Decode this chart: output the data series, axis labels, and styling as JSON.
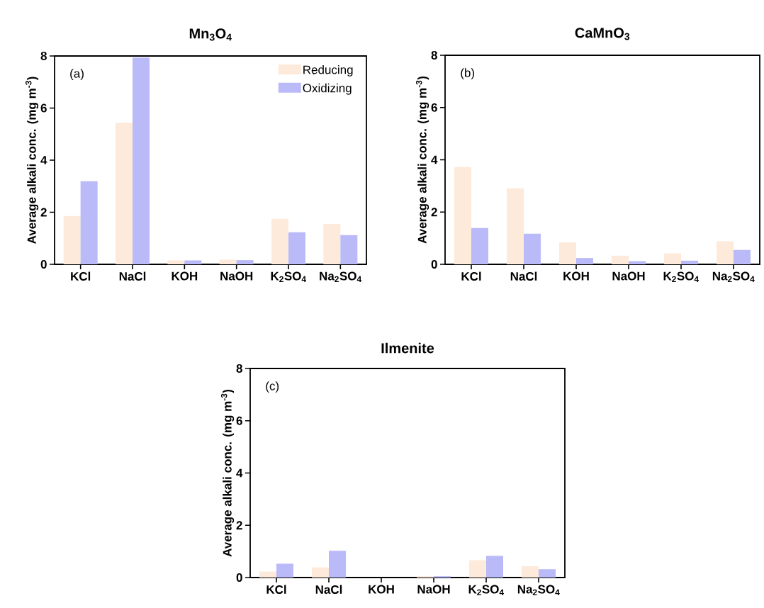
{
  "chart_data": [
    {
      "type": "bar",
      "title": "Mn$_{3}$O$_{4}$",
      "ylabel": "Average alkali conc. (mg m$^{-3}$)",
      "categories": [
        "KCl",
        "NaCl",
        "KOH",
        "NaOH",
        "K$_{2}$SO$_{4}$",
        "Na$_{2}$SO$_{4}$"
      ],
      "ylim": [
        0,
        8
      ],
      "yticks": [
        0,
        2,
        4,
        6,
        8
      ],
      "legend": "top right",
      "annotations": [
        "(a)"
      ],
      "series": [
        {
          "name": "Reducing",
          "color": "#fdeadb",
          "values": [
            1.86,
            5.44,
            0.15,
            0.18,
            1.75,
            1.55
          ]
        },
        {
          "name": "Oxidizing",
          "color": "#babaf8",
          "values": [
            3.19,
            7.94,
            0.15,
            0.16,
            1.23,
            1.12
          ]
        }
      ]
    },
    {
      "type": "bar",
      "title": "CaMnO$_{3}$",
      "ylabel": "Average alkali conc. (mg m$^{-3}$)",
      "categories": [
        "KCl",
        "NaCl",
        "KOH",
        "NaOH",
        "K$_{2}$SO$_{4}$",
        "Na$_{2}$SO$_{4}$"
      ],
      "ylim": [
        0,
        8
      ],
      "yticks": [
        0,
        2,
        4,
        6,
        8
      ],
      "annotations": [
        "(b)"
      ],
      "series": [
        {
          "color": "#fdeadb",
          "values": [
            3.72,
            2.91,
            0.84,
            0.33,
            0.42,
            0.88
          ]
        },
        {
          "color": "#babaf8",
          "values": [
            1.39,
            1.17,
            0.24,
            0.12,
            0.14,
            0.55
          ]
        }
      ]
    },
    {
      "type": "bar",
      "title": "Ilmenite",
      "ylabel": "Average alkali conc. (mg m$^{-3}$)",
      "categories": [
        "KCl",
        "NaCl",
        "KOH",
        "NaOH",
        "K$_{2}$SO$_{4}$",
        "Na$_{2}$SO$_{4}$"
      ],
      "ylim": [
        0,
        8
      ],
      "yticks": [
        0,
        2,
        4,
        6,
        8
      ],
      "annotations": [
        "(c)"
      ],
      "series": [
        {
          "color": "#fdeadb",
          "values": [
            0.23,
            0.39,
            0,
            0.05,
            0.66,
            0.43
          ]
        },
        {
          "color": "#babaf8",
          "values": [
            0.53,
            1.02,
            0,
            0.05,
            0.83,
            0.32
          ]
        }
      ]
    }
  ]
}
